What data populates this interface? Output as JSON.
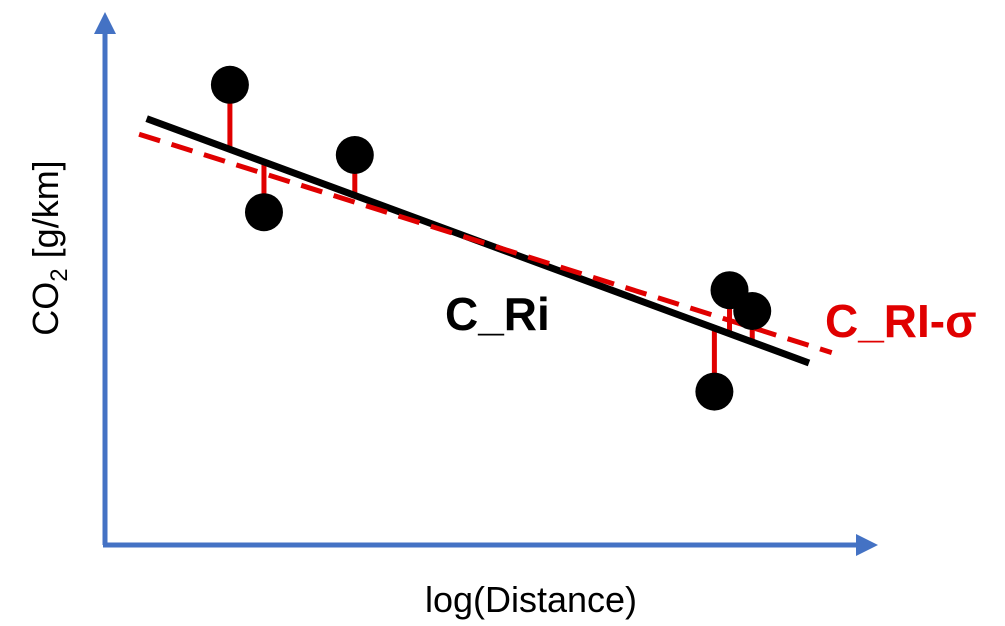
{
  "chart_data": {
    "type": "scatter",
    "title": "",
    "xlabel": "log(Distance)",
    "ylabel": {
      "main": "CO",
      "subscript": "2",
      "unit": " [g/km]"
    },
    "xlim": [
      0,
      10
    ],
    "ylim": [
      0,
      10
    ],
    "grid": false,
    "axis_color": "#4472C4",
    "points": [
      {
        "x": 1.65,
        "y": 8.85
      },
      {
        "x": 2.1,
        "y": 6.4
      },
      {
        "x": 3.3,
        "y": 7.5
      },
      {
        "x": 8.25,
        "y": 4.9
      },
      {
        "x": 8.55,
        "y": 4.5
      },
      {
        "x": 8.05,
        "y": 2.95
      }
    ],
    "lines": [
      {
        "label": "C_Ri",
        "color": "#000000",
        "style": "solid",
        "x": [
          0.55,
          9.3
        ],
        "y": [
          8.2,
          3.5
        ]
      },
      {
        "label": "C_RI-σ",
        "color": "#E00000",
        "style": "dashed",
        "x": [
          0.45,
          9.6
        ],
        "y": [
          7.9,
          3.7
        ]
      }
    ],
    "residual_color": "#E00000",
    "point_color": "#000000"
  }
}
